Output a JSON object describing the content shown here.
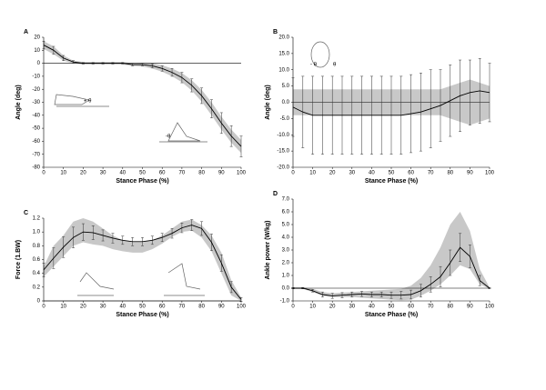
{
  "chart_data": [
    {
      "type": "line",
      "label": "A",
      "xlabel": "Stance Phase (%)",
      "ylabel": "Angle (deg)",
      "xlim": [
        0,
        100
      ],
      "xticks": [
        0,
        10,
        20,
        30,
        40,
        50,
        60,
        70,
        80,
        90,
        100
      ],
      "ylim": [
        -80,
        20
      ],
      "yticks": [
        20,
        10,
        0,
        -10,
        -20,
        -30,
        -40,
        -50,
        -60,
        -70,
        -80
      ],
      "x": [
        0,
        5,
        10,
        15,
        20,
        25,
        30,
        35,
        40,
        45,
        50,
        55,
        60,
        65,
        70,
        75,
        80,
        85,
        90,
        95,
        100
      ],
      "band": {
        "color": "#c8c8c8",
        "high": [
          17,
          13,
          6,
          2,
          1,
          1,
          1,
          1,
          1,
          0,
          0.5,
          0,
          -1.5,
          -4,
          -7.5,
          -13,
          -20.5,
          -30,
          -41,
          -51,
          -59
        ],
        "low": [
          11,
          7,
          2,
          0,
          -1,
          -1,
          -1,
          -1,
          -1,
          -2,
          -2.5,
          -4,
          -6.5,
          -10,
          -14.5,
          -21,
          -29.5,
          -40,
          -51,
          -61,
          -69
        ]
      },
      "series": [
        {
          "color": "#000000",
          "values": [
            14,
            10,
            4,
            1,
            0,
            0,
            0,
            0,
            0,
            -1,
            -1,
            -2,
            -4,
            -7,
            -11,
            -17,
            -25,
            -35,
            -46,
            -56,
            -64
          ],
          "errors": [
            3,
            3,
            2,
            1,
            0.5,
            0.5,
            0.5,
            0.5,
            0.5,
            1,
            1,
            1.5,
            2,
            3,
            4,
            5,
            6,
            7,
            8,
            8,
            8
          ]
        }
      ],
      "annotations": [
        "+ θ",
        "-θ"
      ]
    },
    {
      "type": "line",
      "label": "B",
      "xlabel": "Stance Phase (%)",
      "ylabel": "Angle (deg)",
      "xlim": [
        0,
        100
      ],
      "xticks": [
        0,
        10,
        20,
        30,
        40,
        50,
        60,
        70,
        80,
        90,
        100
      ],
      "ylim": [
        -20,
        20
      ],
      "yticks": [
        {
          "value": 20,
          "label": "20.0"
        },
        {
          "value": 15,
          "label": "15.0"
        },
        {
          "value": 10,
          "label": "10.0"
        },
        {
          "value": 5,
          "label": "5.0"
        },
        {
          "value": 0,
          "label": "0.0"
        },
        {
          "value": -5,
          "label": "-5.0"
        },
        {
          "value": -10,
          "label": "-10.0"
        },
        {
          "value": -15,
          "label": "-15.0"
        },
        {
          "value": -20,
          "label": "-20.0"
        }
      ],
      "x": [
        0,
        5,
        10,
        15,
        20,
        25,
        30,
        35,
        40,
        45,
        50,
        55,
        60,
        65,
        70,
        75,
        80,
        85,
        90,
        95,
        100
      ],
      "band": {
        "color": "#c8c8c8",
        "high": [
          4,
          4,
          4,
          4,
          4,
          4,
          4,
          4,
          4,
          4,
          4,
          4,
          4,
          4,
          4,
          4,
          5,
          6,
          7,
          6,
          5
        ],
        "low": [
          -4,
          -4,
          -4,
          -4,
          -4,
          -4,
          -4,
          -4,
          -4,
          -4,
          -4,
          -4,
          -4,
          -4,
          -4,
          -4,
          -5,
          -6,
          -7,
          -6,
          -5
        ]
      },
      "series": [
        {
          "color": "#000000",
          "values": [
            -1.5,
            -3,
            -4,
            -4,
            -4,
            -4,
            -4,
            -4,
            -4,
            -4,
            -4,
            -4,
            -3.5,
            -3,
            -2,
            -1,
            0.5,
            2,
            3,
            3.5,
            3
          ],
          "errors": [
            9,
            11,
            12,
            12,
            12,
            12,
            12,
            12,
            12,
            12,
            12,
            12,
            12,
            12,
            12,
            11,
            11,
            11,
            10,
            10,
            9
          ]
        }
      ],
      "annotations": [
        "- θ",
        "θ"
      ]
    },
    {
      "type": "line",
      "label": "C",
      "xlabel": "Stance Phase (%)",
      "ylabel": "Force (1.BW)",
      "xlim": [
        0,
        100
      ],
      "xticks": [
        0,
        10,
        20,
        30,
        40,
        50,
        60,
        70,
        80,
        90,
        100
      ],
      "ylim": [
        0,
        1.2
      ],
      "yticks": [
        0,
        0.2,
        0.4,
        0.6,
        0.8,
        {
          "value": 1,
          "label": "1.0"
        },
        1.2
      ],
      "x": [
        0,
        5,
        10,
        15,
        20,
        25,
        30,
        35,
        40,
        45,
        50,
        55,
        60,
        65,
        70,
        75,
        80,
        85,
        90,
        95,
        100
      ],
      "band": {
        "color": "#c8c8c8",
        "high": [
          0.5,
          0.8,
          0.95,
          1.15,
          1.2,
          1.15,
          1.05,
          0.95,
          0.88,
          0.85,
          0.85,
          0.88,
          0.95,
          1.05,
          1.15,
          1.18,
          1.1,
          0.95,
          0.7,
          0.3,
          0.05
        ],
        "low": [
          0.35,
          0.5,
          0.65,
          0.8,
          0.85,
          0.82,
          0.8,
          0.75,
          0.72,
          0.7,
          0.7,
          0.75,
          0.83,
          0.93,
          1,
          1.02,
          0.92,
          0.72,
          0.4,
          0.08,
          0
        ]
      },
      "series": [
        {
          "color": "#000000",
          "values": [
            0.45,
            0.62,
            0.78,
            0.92,
            1,
            0.99,
            0.95,
            0.91,
            0.88,
            0.86,
            0.86,
            0.88,
            0.92,
            0.98,
            1.06,
            1.1,
            1.05,
            0.85,
            0.55,
            0.2,
            0.02
          ],
          "errors": [
            0.1,
            0.15,
            0.15,
            0.15,
            0.12,
            0.1,
            0.08,
            0.07,
            0.06,
            0.06,
            0.06,
            0.06,
            0.06,
            0.07,
            0.07,
            0.08,
            0.1,
            0.12,
            0.12,
            0.08,
            0.03
          ]
        }
      ],
      "annotations": []
    },
    {
      "type": "line",
      "label": "D",
      "xlabel": "Stance Phase (%)",
      "ylabel": "Ankle power (W/kg)",
      "xlim": [
        0,
        100
      ],
      "xticks": [
        0,
        10,
        20,
        30,
        40,
        50,
        60,
        70,
        80,
        90,
        100
      ],
      "ylim": [
        -1,
        7
      ],
      "yticks": [
        {
          "value": 7,
          "label": "7.0"
        },
        {
          "value": 6,
          "label": "6.0"
        },
        {
          "value": 5,
          "label": "5.0"
        },
        {
          "value": 4,
          "label": "4.0"
        },
        {
          "value": 3,
          "label": "3.0"
        },
        {
          "value": 2,
          "label": "2.0"
        },
        {
          "value": 1,
          "label": "1.0"
        },
        {
          "value": 0,
          "label": "0.0"
        },
        {
          "value": -1,
          "label": "-1.0"
        }
      ],
      "x": [
        0,
        5,
        10,
        15,
        20,
        25,
        30,
        35,
        40,
        45,
        50,
        55,
        60,
        65,
        70,
        75,
        80,
        85,
        90,
        95,
        100
      ],
      "band": {
        "color": "#c8c8c8",
        "high": [
          0.05,
          0.05,
          -0.05,
          -0.3,
          -0.4,
          -0.35,
          -0.3,
          -0.25,
          -0.2,
          -0.15,
          -0.1,
          -0.05,
          0.2,
          0.8,
          1.8,
          3.2,
          5,
          6,
          4.5,
          1.5,
          0.05
        ],
        "low": [
          -0.05,
          -0.05,
          -0.3,
          -0.6,
          -0.7,
          -0.7,
          -0.7,
          -0.75,
          -0.8,
          -0.85,
          -0.9,
          -0.95,
          -0.9,
          -0.6,
          -0.2,
          0.3,
          1,
          1.8,
          1.5,
          0.3,
          -0.05
        ]
      },
      "series": [
        {
          "color": "#000000",
          "values": [
            0,
            0,
            -0.2,
            -0.5,
            -0.6,
            -0.55,
            -0.5,
            -0.45,
            -0.5,
            -0.5,
            -0.55,
            -0.55,
            -0.5,
            -0.2,
            0.3,
            0.9,
            2,
            3.2,
            2.5,
            0.6,
            0
          ],
          "errors": [
            0.05,
            0.05,
            0.1,
            0.2,
            0.2,
            0.2,
            0.2,
            0.2,
            0.2,
            0.2,
            0.25,
            0.3,
            0.35,
            0.5,
            0.6,
            0.8,
            1,
            1.1,
            0.9,
            0.4,
            0.05
          ]
        }
      ],
      "annotations": []
    }
  ]
}
